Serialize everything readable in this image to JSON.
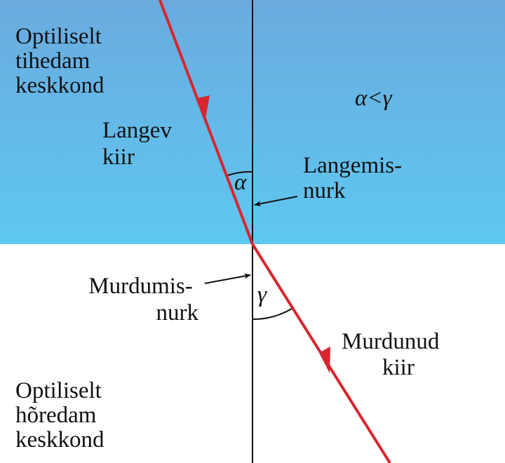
{
  "labels": {
    "dense_medium": [
      "Optiliselt",
      "tihedam",
      "keskkond"
    ],
    "rare_medium": [
      "Optiliselt",
      "hõredam",
      "keskkond"
    ],
    "incident_ray": [
      "Langev",
      "kiir"
    ],
    "refracted_ray": [
      "Murdunud",
      "kiir"
    ],
    "incidence_angle": [
      "Langemis-",
      "nurk"
    ],
    "refraction_angle": [
      "Murdumis-",
      "nurk"
    ],
    "relation": "α<γ",
    "alpha": "α",
    "gamma": "γ"
  },
  "colors": {
    "dense_top": "#6aaadf",
    "dense_bottom": "#5ec8f0",
    "rare": "#ffffff",
    "ray": "#d8262e",
    "line": "#111111"
  }
}
